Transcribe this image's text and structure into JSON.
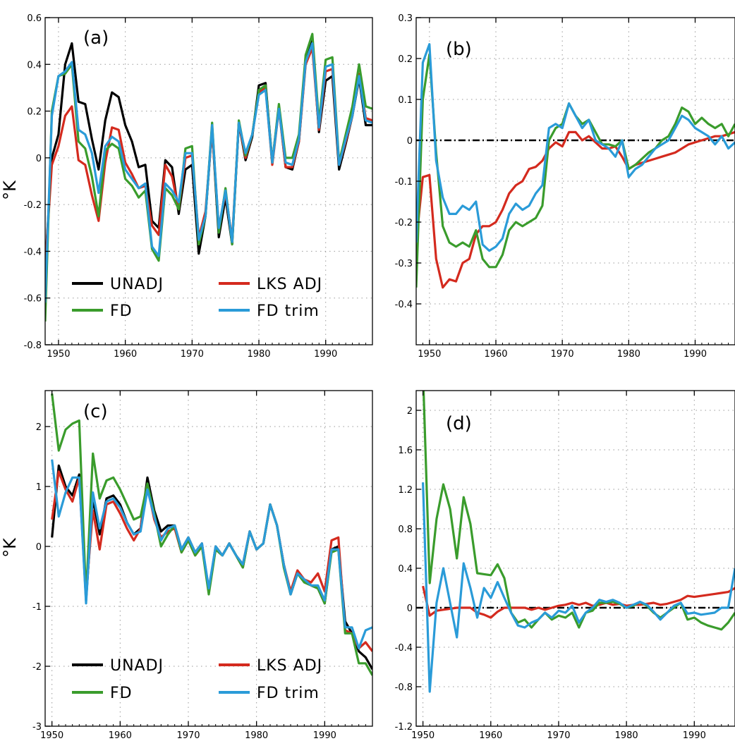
{
  "colors": {
    "UNADJ": "#000000",
    "LKS ADJ": "#d42a1e",
    "FD": "#3a9c2c",
    "FD trim": "#2a9bd8"
  },
  "chart_data": [
    {
      "type": "line",
      "panel": "(a)",
      "ylabel": "°K",
      "xlim": [
        1948,
        1997
      ],
      "ylim": [
        -0.8,
        0.6
      ],
      "yticks": [
        -0.8,
        -0.6,
        -0.4,
        -0.2,
        0,
        0.2,
        0.4,
        0.6
      ],
      "yticklabels": [
        "-0.8",
        "-0.6",
        "-0.4",
        "-0.2",
        "0",
        "0.2",
        "0.4",
        "0.6"
      ],
      "xticks": [
        1950,
        1960,
        1970,
        1980,
        1990
      ],
      "xticklabels": [
        "1950",
        "1960",
        "1970",
        "1980",
        "1990"
      ],
      "grid": true,
      "legend": [
        "UNADJ",
        "LKS ADJ",
        "FD",
        "FD trim"
      ],
      "x": [
        1948,
        1949,
        1950,
        1951,
        1952,
        1953,
        1954,
        1955,
        1956,
        1957,
        1958,
        1959,
        1960,
        1961,
        1962,
        1963,
        1964,
        1965,
        1966,
        1967,
        1968,
        1969,
        1970,
        1971,
        1972,
        1973,
        1974,
        1975,
        1976,
        1977,
        1978,
        1979,
        1980,
        1981,
        1982,
        1983,
        1984,
        1985,
        1986,
        1987,
        1988,
        1989,
        1990,
        1991,
        1992,
        1993,
        1994,
        1995,
        1996,
        1997
      ],
      "series": [
        {
          "name": "UNADJ",
          "values": [
            -0.47,
            0.0,
            0.1,
            0.4,
            0.49,
            0.24,
            0.23,
            0.08,
            -0.05,
            0.16,
            0.28,
            0.26,
            0.14,
            0.07,
            -0.04,
            -0.03,
            -0.27,
            -0.3,
            -0.01,
            -0.04,
            -0.24,
            -0.05,
            -0.03,
            -0.41,
            -0.25,
            0.13,
            -0.34,
            -0.17,
            -0.37,
            0.15,
            -0.01,
            0.09,
            0.31,
            0.32,
            -0.02,
            0.22,
            -0.04,
            -0.05,
            0.07,
            0.41,
            0.5,
            0.11,
            0.33,
            0.35,
            -0.05,
            0.06,
            0.18,
            0.34,
            0.14,
            0.14
          ]
        },
        {
          "name": "LKS ADJ",
          "values": [
            -0.47,
            -0.03,
            0.05,
            0.18,
            0.22,
            -0.01,
            -0.03,
            -0.16,
            -0.27,
            -0.02,
            0.13,
            0.12,
            -0.02,
            -0.07,
            -0.13,
            -0.12,
            -0.29,
            -0.33,
            -0.03,
            -0.08,
            -0.22,
            0.0,
            0.01,
            -0.34,
            -0.23,
            0.12,
            -0.3,
            -0.15,
            -0.35,
            0.15,
            0.0,
            0.1,
            0.28,
            0.3,
            -0.03,
            0.21,
            -0.04,
            -0.04,
            0.07,
            0.4,
            0.47,
            0.12,
            0.37,
            0.38,
            -0.03,
            0.07,
            0.18,
            0.36,
            0.17,
            0.16
          ]
        },
        {
          "name": "FD",
          "values": [
            -0.7,
            0.2,
            0.35,
            0.36,
            0.4,
            0.07,
            0.04,
            -0.08,
            -0.25,
            0.03,
            0.06,
            0.04,
            -0.09,
            -0.12,
            -0.17,
            -0.14,
            -0.39,
            -0.44,
            -0.13,
            -0.16,
            -0.22,
            0.04,
            0.05,
            -0.37,
            -0.25,
            0.15,
            -0.32,
            -0.13,
            -0.37,
            0.16,
            0.01,
            0.1,
            0.29,
            0.31,
            -0.02,
            0.23,
            0.0,
            0.0,
            0.1,
            0.44,
            0.53,
            0.15,
            0.42,
            0.43,
            -0.02,
            0.1,
            0.22,
            0.4,
            0.22,
            0.21
          ]
        },
        {
          "name": "FD trim",
          "values": [
            -0.62,
            0.18,
            0.35,
            0.37,
            0.41,
            0.12,
            0.1,
            0.02,
            -0.15,
            0.05,
            0.09,
            0.07,
            -0.05,
            -0.09,
            -0.13,
            -0.11,
            -0.38,
            -0.42,
            -0.11,
            -0.14,
            -0.19,
            0.02,
            0.02,
            -0.35,
            -0.25,
            0.14,
            -0.3,
            -0.14,
            -0.36,
            0.15,
            0.02,
            0.1,
            0.27,
            0.29,
            -0.02,
            0.21,
            -0.02,
            -0.03,
            0.08,
            0.41,
            0.49,
            0.13,
            0.39,
            0.4,
            -0.03,
            0.08,
            0.18,
            0.35,
            0.16,
            0.15
          ]
        }
      ]
    },
    {
      "type": "line",
      "panel": "(b)",
      "ylabel": "",
      "xlim": [
        1948,
        1996
      ],
      "ylim": [
        -0.5,
        0.3
      ],
      "yticks": [
        -0.4,
        -0.3,
        -0.2,
        -0.1,
        0,
        0.1,
        0.2,
        0.3
      ],
      "yticklabels": [
        "-0.4",
        "-0.3",
        "-0.2",
        "-0.1",
        "0",
        "0.1",
        "0.2",
        "0.3"
      ],
      "xticks": [
        1950,
        1960,
        1970,
        1980,
        1990
      ],
      "xticklabels": [
        "1950",
        "1960",
        "1970",
        "1980",
        "1990"
      ],
      "grid": true,
      "zero_line": true,
      "x": [
        1948,
        1949,
        1950,
        1951,
        1952,
        1953,
        1954,
        1955,
        1956,
        1957,
        1958,
        1959,
        1960,
        1961,
        1962,
        1963,
        1964,
        1965,
        1966,
        1967,
        1968,
        1969,
        1970,
        1971,
        1972,
        1973,
        1974,
        1975,
        1976,
        1977,
        1978,
        1979,
        1980,
        1981,
        1982,
        1983,
        1984,
        1985,
        1986,
        1987,
        1988,
        1989,
        1990,
        1991,
        1992,
        1993,
        1994,
        1995,
        1996
      ],
      "series": [
        {
          "name": "LKS ADJ",
          "values": [
            -0.25,
            -0.09,
            -0.085,
            -0.29,
            -0.36,
            -0.34,
            -0.345,
            -0.3,
            -0.29,
            -0.23,
            -0.21,
            -0.21,
            -0.2,
            -0.17,
            -0.13,
            -0.11,
            -0.1,
            -0.07,
            -0.065,
            -0.05,
            -0.02,
            -0.005,
            -0.015,
            0.02,
            0.02,
            0.0,
            0.01,
            -0.005,
            -0.02,
            -0.02,
            -0.015,
            -0.04,
            -0.07,
            -0.06,
            -0.055,
            -0.05,
            -0.045,
            -0.04,
            -0.035,
            -0.03,
            -0.02,
            -0.01,
            -0.005,
            0.0,
            0.005,
            0.01,
            0.01,
            0.015,
            0.02
          ]
        },
        {
          "name": "FD",
          "values": [
            -0.36,
            0.1,
            0.21,
            -0.03,
            -0.21,
            -0.25,
            -0.26,
            -0.25,
            -0.26,
            -0.22,
            -0.29,
            -0.31,
            -0.31,
            -0.28,
            -0.22,
            -0.2,
            -0.21,
            -0.2,
            -0.19,
            -0.16,
            0.0,
            0.03,
            0.04,
            0.09,
            0.06,
            0.04,
            0.05,
            0.02,
            -0.01,
            -0.01,
            -0.015,
            0.0,
            -0.07,
            -0.06,
            -0.045,
            -0.03,
            -0.02,
            0.0,
            0.01,
            0.04,
            0.08,
            0.07,
            0.04,
            0.055,
            0.04,
            0.03,
            0.04,
            0.01,
            0.04
          ]
        },
        {
          "name": "FD trim",
          "values": [
            -0.25,
            0.19,
            0.235,
            -0.05,
            -0.14,
            -0.18,
            -0.18,
            -0.16,
            -0.17,
            -0.15,
            -0.255,
            -0.27,
            -0.26,
            -0.24,
            -0.18,
            -0.155,
            -0.17,
            -0.16,
            -0.13,
            -0.11,
            0.03,
            0.04,
            0.03,
            0.09,
            0.06,
            0.03,
            0.05,
            0.0,
            -0.01,
            -0.02,
            -0.04,
            0.0,
            -0.09,
            -0.07,
            -0.06,
            -0.04,
            -0.02,
            -0.01,
            0.0,
            0.03,
            0.06,
            0.05,
            0.03,
            0.02,
            0.01,
            -0.01,
            0.01,
            -0.02,
            -0.005
          ]
        }
      ]
    },
    {
      "type": "line",
      "panel": "(c)",
      "ylabel": "°K",
      "xlim": [
        1949,
        1997
      ],
      "ylim": [
        -3,
        2.6
      ],
      "yticks": [
        -3,
        -2,
        -1,
        0,
        1,
        2
      ],
      "yticklabels": [
        "-3",
        "-2",
        "-1",
        "0",
        "1",
        "2"
      ],
      "xticks": [
        1950,
        1960,
        1970,
        1980,
        1990
      ],
      "xticklabels": [
        "1950",
        "1960",
        "1970",
        "1980",
        "1990"
      ],
      "grid": true,
      "legend": [
        "UNADJ",
        "LKS ADJ",
        "FD",
        "FD trim"
      ],
      "x": [
        1950,
        1951,
        1952,
        1953,
        1954,
        1955,
        1956,
        1957,
        1958,
        1959,
        1960,
        1961,
        1962,
        1963,
        1964,
        1965,
        1966,
        1967,
        1968,
        1969,
        1970,
        1971,
        1972,
        1973,
        1974,
        1975,
        1976,
        1977,
        1978,
        1979,
        1980,
        1981,
        1982,
        1983,
        1984,
        1985,
        1986,
        1987,
        1988,
        1989,
        1990,
        1991,
        1992,
        1993,
        1994,
        1995,
        1996,
        1997
      ],
      "series": [
        {
          "name": "UNADJ",
          "values": [
            0.15,
            1.35,
            1.0,
            0.85,
            1.2,
            -0.9,
            0.8,
            0.2,
            0.8,
            0.85,
            0.7,
            0.4,
            0.2,
            0.3,
            1.15,
            0.6,
            0.25,
            0.35,
            0.35,
            -0.05,
            0.15,
            -0.1,
            0.05,
            -0.75,
            0.0,
            -0.15,
            0.05,
            -0.15,
            -0.35,
            0.25,
            -0.05,
            0.05,
            0.7,
            0.35,
            -0.3,
            -0.8,
            -0.45,
            -0.55,
            -0.65,
            -0.7,
            -0.95,
            -0.05,
            0.0,
            -1.25,
            -1.45,
            -1.75,
            -1.85,
            -2.05
          ]
        },
        {
          "name": "LKS ADJ",
          "values": [
            0.45,
            1.25,
            0.95,
            0.75,
            1.15,
            -0.8,
            0.6,
            -0.05,
            0.7,
            0.75,
            0.55,
            0.3,
            0.1,
            0.3,
            1.0,
            0.45,
            0.15,
            0.25,
            0.3,
            -0.1,
            0.1,
            -0.15,
            0.0,
            -0.7,
            -0.05,
            -0.15,
            0.05,
            -0.15,
            -0.3,
            0.25,
            -0.05,
            0.05,
            0.7,
            0.35,
            -0.3,
            -0.75,
            -0.4,
            -0.55,
            -0.6,
            -0.45,
            -0.75,
            0.1,
            0.15,
            -1.4,
            -1.45,
            -1.7,
            -1.6,
            -1.75
          ]
        },
        {
          "name": "FD",
          "values": [
            2.55,
            1.6,
            1.95,
            2.05,
            2.1,
            -0.85,
            1.55,
            0.8,
            1.1,
            1.15,
            0.95,
            0.7,
            0.45,
            0.5,
            1.05,
            0.55,
            0.0,
            0.2,
            0.35,
            -0.1,
            0.1,
            -0.15,
            0.0,
            -0.8,
            -0.05,
            -0.15,
            0.05,
            -0.15,
            -0.35,
            0.25,
            -0.05,
            0.05,
            0.7,
            0.35,
            -0.35,
            -0.8,
            -0.45,
            -0.6,
            -0.65,
            -0.7,
            -0.95,
            -0.1,
            -0.05,
            -1.45,
            -1.45,
            -1.95,
            -1.95,
            -2.15
          ]
        },
        {
          "name": "FD trim",
          "values": [
            1.45,
            0.5,
            0.9,
            1.15,
            1.15,
            -0.95,
            0.9,
            0.3,
            0.75,
            0.8,
            0.65,
            0.4,
            0.2,
            0.25,
            0.95,
            0.5,
            0.1,
            0.3,
            0.35,
            -0.05,
            0.15,
            -0.1,
            0.05,
            -0.7,
            0.0,
            -0.15,
            0.05,
            -0.15,
            -0.3,
            0.25,
            -0.05,
            0.05,
            0.7,
            0.35,
            -0.3,
            -0.8,
            -0.45,
            -0.55,
            -0.65,
            -0.65,
            -0.9,
            -0.05,
            -0.05,
            -1.35,
            -1.35,
            -1.7,
            -1.4,
            -1.35
          ]
        }
      ]
    },
    {
      "type": "line",
      "panel": "(d)",
      "ylabel": "",
      "xlim": [
        1949,
        1996
      ],
      "ylim": [
        -1.2,
        2.2
      ],
      "yticks": [
        -1.2,
        -0.8,
        -0.4,
        0,
        0.4,
        0.8,
        1.2,
        1.6,
        2
      ],
      "yticklabels": [
        "-1.2",
        "-0.8",
        "-0.4",
        "0",
        "0.4",
        "0.8",
        "1.2",
        "1.6",
        "2"
      ],
      "xticks": [
        1950,
        1960,
        1970,
        1980,
        1990
      ],
      "xticklabels": [
        "1950",
        "1960",
        "1970",
        "1980",
        "1990"
      ],
      "grid": true,
      "zero_line": true,
      "x": [
        1950,
        1951,
        1952,
        1953,
        1954,
        1955,
        1956,
        1957,
        1958,
        1959,
        1960,
        1961,
        1962,
        1963,
        1964,
        1965,
        1966,
        1967,
        1968,
        1969,
        1970,
        1971,
        1972,
        1973,
        1974,
        1975,
        1976,
        1977,
        1978,
        1979,
        1980,
        1981,
        1982,
        1983,
        1984,
        1985,
        1986,
        1987,
        1988,
        1989,
        1990,
        1991,
        1992,
        1993,
        1994,
        1995,
        1996
      ],
      "series": [
        {
          "name": "LKS ADJ",
          "values": [
            0.22,
            -0.08,
            -0.03,
            -0.02,
            -0.01,
            0.0,
            0.0,
            0.0,
            -0.05,
            -0.07,
            -0.1,
            -0.04,
            0.0,
            0.0,
            0.0,
            0.0,
            -0.02,
            0.0,
            -0.02,
            0.0,
            0.02,
            0.03,
            0.05,
            0.03,
            0.05,
            0.02,
            0.03,
            0.05,
            0.03,
            0.04,
            0.02,
            0.03,
            0.03,
            0.04,
            0.05,
            0.03,
            0.04,
            0.06,
            0.08,
            0.12,
            0.11,
            0.12,
            0.13,
            0.14,
            0.15,
            0.16,
            0.2
          ]
        },
        {
          "name": "FD",
          "values": [
            2.4,
            0.25,
            0.9,
            1.25,
            1.0,
            0.5,
            1.12,
            0.85,
            0.35,
            0.34,
            0.33,
            0.44,
            0.3,
            -0.05,
            -0.15,
            -0.12,
            -0.2,
            -0.12,
            -0.05,
            -0.12,
            -0.08,
            -0.1,
            -0.05,
            -0.2,
            -0.05,
            -0.03,
            0.05,
            0.05,
            0.06,
            0.04,
            0.0,
            0.02,
            0.06,
            0.02,
            -0.05,
            -0.1,
            -0.05,
            0.0,
            0.05,
            -0.12,
            -0.1,
            -0.15,
            -0.18,
            -0.2,
            -0.22,
            -0.15,
            -0.05
          ]
        },
        {
          "name": "FD trim",
          "values": [
            1.27,
            -0.85,
            0.05,
            0.4,
            0.05,
            -0.3,
            0.45,
            0.2,
            -0.1,
            0.2,
            0.1,
            0.26,
            0.1,
            -0.05,
            -0.18,
            -0.2,
            -0.15,
            -0.12,
            -0.05,
            -0.1,
            -0.03,
            -0.05,
            0.02,
            -0.15,
            -0.05,
            0.0,
            0.08,
            0.06,
            0.08,
            0.05,
            0.0,
            0.03,
            0.06,
            0.03,
            -0.04,
            -0.12,
            -0.05,
            0.02,
            0.05,
            -0.06,
            -0.05,
            -0.07,
            -0.06,
            -0.05,
            0.0,
            0.0,
            0.4
          ]
        }
      ]
    }
  ]
}
